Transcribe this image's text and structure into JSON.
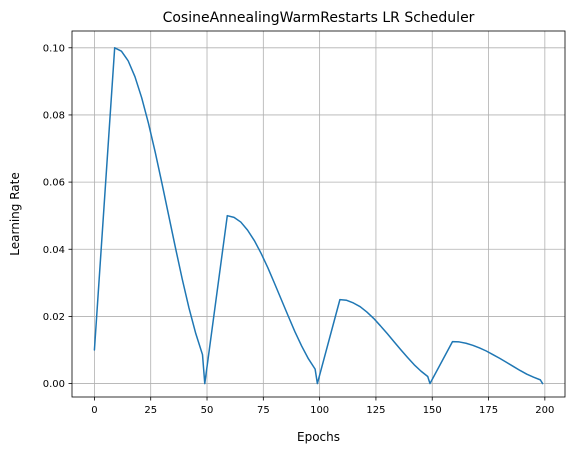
{
  "chart_data": {
    "type": "line",
    "title": "CosineAnnealingWarmRestarts LR Scheduler",
    "xlabel": "Epochs",
    "ylabel": "Learning Rate",
    "xlim": [
      -9.95,
      208.95
    ],
    "ylim": [
      -0.004,
      0.105
    ],
    "xticks": [
      0,
      25,
      50,
      75,
      100,
      125,
      150,
      175,
      200
    ],
    "yticks": [
      0.0,
      0.02,
      0.04,
      0.06,
      0.08,
      0.1
    ],
    "xtick_labels": [
      "0",
      "25",
      "50",
      "75",
      "100",
      "125",
      "150",
      "175",
      "200"
    ],
    "ytick_labels": [
      "0.00",
      "0.02",
      "0.04",
      "0.06",
      "0.08",
      "0.10"
    ],
    "grid": true,
    "series": [
      {
        "color": "#1f77b4",
        "x": [
          0,
          9,
          12,
          15,
          18,
          21,
          24,
          27,
          30,
          33,
          36,
          39,
          42,
          45,
          48,
          49,
          59,
          62,
          65,
          68,
          71,
          74,
          77,
          80,
          83,
          86,
          89,
          92,
          95,
          98,
          99,
          109,
          112,
          115,
          118,
          121,
          124,
          127,
          130,
          133,
          136,
          139,
          142,
          145,
          148,
          149,
          159,
          162,
          165,
          168,
          171,
          174,
          177,
          180,
          183,
          186,
          189,
          192,
          195,
          198,
          199
        ],
        "y": [
          0.01,
          0.1,
          0.099,
          0.0961,
          0.0914,
          0.0851,
          0.0775,
          0.0689,
          0.0596,
          0.05,
          0.0404,
          0.0311,
          0.0225,
          0.0149,
          0.0086,
          0.0,
          0.05,
          0.0495,
          0.0481,
          0.0457,
          0.0426,
          0.0388,
          0.0345,
          0.0298,
          0.025,
          0.0202,
          0.0155,
          0.0112,
          0.0074,
          0.0043,
          0.0,
          0.025,
          0.0248,
          0.024,
          0.0229,
          0.0213,
          0.0194,
          0.0172,
          0.0149,
          0.0125,
          0.0101,
          0.0078,
          0.0056,
          0.0037,
          0.0021,
          0.0,
          0.0125,
          0.0124,
          0.012,
          0.0114,
          0.0106,
          0.0097,
          0.0086,
          0.0075,
          0.0063,
          0.0051,
          0.0039,
          0.0028,
          0.0019,
          0.0011,
          0.0
        ]
      }
    ]
  }
}
